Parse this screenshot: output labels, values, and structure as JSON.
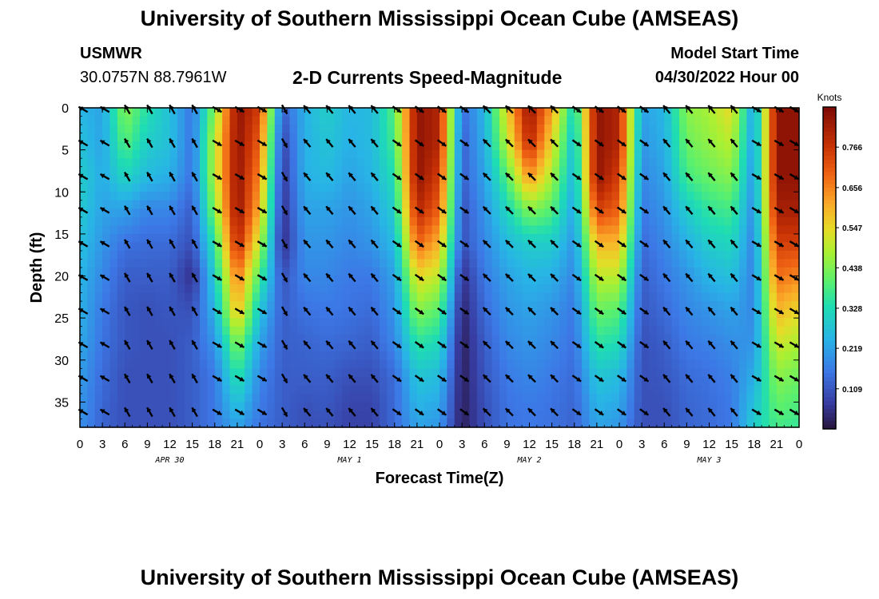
{
  "header": {
    "title": "University of Southern Mississippi Ocean Cube (AMSEAS)",
    "station": "USMWR",
    "coordinates": "30.0757N  88.7961W",
    "plot_name": "2-D Currents Speed-Magnitude",
    "start_label": "Model Start Time",
    "start_value": "04/30/2022 Hour 00"
  },
  "footer": {
    "title": "University of Southern Mississippi Ocean Cube (AMSEAS)"
  },
  "chart_data": {
    "type": "heatmap",
    "title": "2-D Currents Speed-Magnitude",
    "xlabel": "Forecast Time(Z)",
    "ylabel": "Depth (ft)",
    "x_ticks": [
      "0",
      "3",
      "6",
      "9",
      "12",
      "15",
      "18",
      "21",
      "0",
      "3",
      "6",
      "9",
      "12",
      "15",
      "18",
      "21",
      "0",
      "3",
      "6",
      "9",
      "12",
      "15",
      "18",
      "21",
      "0",
      "3",
      "6",
      "9",
      "12",
      "15",
      "18",
      "21",
      "0"
    ],
    "date_labels": [
      {
        "label": "APR 30",
        "hour": 12
      },
      {
        "label": "MAY 1",
        "hour": 36
      },
      {
        "label": "MAY 2",
        "hour": 60
      },
      {
        "label": "MAY 3",
        "hour": 84
      }
    ],
    "xlim_hours": [
      0,
      96
    ],
    "ylim_ft": [
      0,
      38
    ],
    "y_ticks": [
      0,
      5,
      10,
      15,
      20,
      25,
      30,
      35
    ],
    "colorbar": {
      "unit": "Knots",
      "ticks": [
        "0.109",
        "0.219",
        "0.328",
        "0.438",
        "0.547",
        "0.656",
        "0.766"
      ],
      "range": [
        0.0,
        0.875
      ]
    },
    "speed_grid": {
      "hours": [
        0,
        3,
        6,
        9,
        12,
        15,
        18,
        21,
        24,
        27,
        30,
        33,
        36,
        39,
        42,
        45,
        48,
        51,
        54,
        57,
        60,
        63,
        66,
        69,
        72,
        75,
        78,
        81,
        84,
        87,
        90,
        93,
        96
      ],
      "depths_ft": [
        0,
        4,
        8,
        12,
        16,
        20,
        24,
        28,
        32,
        36,
        38
      ],
      "values": [
        [
          0.25,
          0.27,
          0.3,
          0.29,
          0.27,
          0.25,
          0.24,
          0.23,
          0.21,
          0.2,
          0.19
        ],
        [
          0.22,
          0.22,
          0.23,
          0.22,
          0.2,
          0.18,
          0.16,
          0.15,
          0.14,
          0.13,
          0.13
        ],
        [
          0.45,
          0.4,
          0.32,
          0.22,
          0.15,
          0.12,
          0.11,
          0.11,
          0.1,
          0.1,
          0.1
        ],
        [
          0.34,
          0.3,
          0.26,
          0.18,
          0.14,
          0.12,
          0.1,
          0.1,
          0.1,
          0.1,
          0.1
        ],
        [
          0.27,
          0.27,
          0.24,
          0.18,
          0.14,
          0.12,
          0.11,
          0.1,
          0.1,
          0.1,
          0.1
        ],
        [
          0.15,
          0.15,
          0.15,
          0.12,
          0.1,
          0.05,
          0.1,
          0.12,
          0.12,
          0.12,
          0.12
        ],
        [
          0.45,
          0.5,
          0.5,
          0.45,
          0.36,
          0.3,
          0.25,
          0.2,
          0.16,
          0.16,
          0.16
        ],
        [
          0.85,
          0.85,
          0.85,
          0.85,
          0.8,
          0.68,
          0.6,
          0.45,
          0.35,
          0.26,
          0.22
        ],
        [
          0.75,
          0.7,
          0.65,
          0.6,
          0.5,
          0.38,
          0.28,
          0.22,
          0.18,
          0.16,
          0.15
        ],
        [
          0.12,
          0.08,
          0.06,
          0.05,
          0.04,
          0.1,
          0.12,
          0.12,
          0.12,
          0.12,
          0.12
        ],
        [
          0.24,
          0.24,
          0.24,
          0.22,
          0.2,
          0.18,
          0.15,
          0.13,
          0.12,
          0.1,
          0.1
        ],
        [
          0.3,
          0.28,
          0.26,
          0.22,
          0.2,
          0.18,
          0.16,
          0.14,
          0.12,
          0.11,
          0.1
        ],
        [
          0.25,
          0.24,
          0.22,
          0.2,
          0.18,
          0.16,
          0.15,
          0.13,
          0.1,
          0.08,
          0.08
        ],
        [
          0.26,
          0.26,
          0.25,
          0.22,
          0.2,
          0.16,
          0.14,
          0.12,
          0.1,
          0.08,
          0.08
        ],
        [
          0.4,
          0.38,
          0.34,
          0.3,
          0.26,
          0.22,
          0.2,
          0.18,
          0.14,
          0.14,
          0.14
        ],
        [
          0.85,
          0.85,
          0.85,
          0.8,
          0.7,
          0.55,
          0.45,
          0.35,
          0.28,
          0.24,
          0.22
        ],
        [
          0.8,
          0.8,
          0.75,
          0.7,
          0.6,
          0.5,
          0.4,
          0.32,
          0.26,
          0.22,
          0.2
        ],
        [
          0.14,
          0.12,
          0.12,
          0.1,
          0.1,
          0.05,
          0.03,
          0.02,
          0.02,
          0.02,
          0.02
        ],
        [
          0.25,
          0.24,
          0.22,
          0.2,
          0.18,
          0.16,
          0.14,
          0.12,
          0.11,
          0.1,
          0.1
        ],
        [
          0.55,
          0.5,
          0.4,
          0.32,
          0.26,
          0.22,
          0.2,
          0.18,
          0.16,
          0.15,
          0.15
        ],
        [
          0.85,
          0.8,
          0.65,
          0.45,
          0.3,
          0.25,
          0.22,
          0.2,
          0.18,
          0.16,
          0.16
        ],
        [
          0.62,
          0.55,
          0.48,
          0.4,
          0.3,
          0.24,
          0.2,
          0.18,
          0.16,
          0.15,
          0.15
        ],
        [
          0.3,
          0.26,
          0.24,
          0.22,
          0.2,
          0.18,
          0.16,
          0.15,
          0.14,
          0.13,
          0.13
        ],
        [
          0.85,
          0.85,
          0.85,
          0.75,
          0.6,
          0.5,
          0.42,
          0.35,
          0.28,
          0.24,
          0.22
        ],
        [
          0.8,
          0.8,
          0.75,
          0.7,
          0.6,
          0.5,
          0.4,
          0.33,
          0.26,
          0.22,
          0.2
        ],
        [
          0.22,
          0.2,
          0.18,
          0.16,
          0.14,
          0.12,
          0.11,
          0.1,
          0.1,
          0.1,
          0.1
        ],
        [
          0.25,
          0.24,
          0.22,
          0.2,
          0.18,
          0.16,
          0.14,
          0.12,
          0.11,
          0.1,
          0.1
        ],
        [
          0.45,
          0.42,
          0.38,
          0.3,
          0.24,
          0.2,
          0.18,
          0.16,
          0.14,
          0.13,
          0.13
        ],
        [
          0.48,
          0.46,
          0.42,
          0.36,
          0.3,
          0.25,
          0.2,
          0.17,
          0.15,
          0.14,
          0.14
        ],
        [
          0.55,
          0.5,
          0.45,
          0.38,
          0.32,
          0.27,
          0.22,
          0.19,
          0.17,
          0.16,
          0.16
        ],
        [
          0.2,
          0.2,
          0.19,
          0.18,
          0.17,
          0.17,
          0.18,
          0.2,
          0.24,
          0.28,
          0.3
        ],
        [
          0.85,
          0.85,
          0.85,
          0.82,
          0.75,
          0.68,
          0.6,
          0.52,
          0.45,
          0.4,
          0.38
        ],
        [
          0.85,
          0.85,
          0.85,
          0.82,
          0.75,
          0.65,
          0.55,
          0.48,
          0.42,
          0.38,
          0.36
        ]
      ]
    },
    "vectors": {
      "depths_ft": [
        0,
        4,
        8,
        12,
        16,
        20,
        24,
        28,
        32,
        36
      ],
      "direction_by_segment": [
        {
          "from_hour": 0,
          "to_hour": 4,
          "deg": 300
        },
        {
          "from_hour": 4,
          "to_hour": 16,
          "deg": 330
        },
        {
          "from_hour": 16,
          "to_hour": 26,
          "deg": 120
        },
        {
          "from_hour": 26,
          "to_hour": 29,
          "deg": 150
        },
        {
          "from_hour": 29,
          "to_hour": 41,
          "deg": 320
        },
        {
          "from_hour": 41,
          "to_hour": 52,
          "deg": 125
        },
        {
          "from_hour": 52,
          "to_hour": 64,
          "deg": 315
        },
        {
          "from_hour": 64,
          "to_hour": 76,
          "deg": 125
        },
        {
          "from_hour": 76,
          "to_hour": 89,
          "deg": 320
        },
        {
          "from_hour": 89,
          "to_hour": 96,
          "deg": 120
        }
      ],
      "hours": [
        0,
        3,
        6,
        9,
        12,
        15,
        18,
        21,
        24,
        27,
        30,
        33,
        36,
        39,
        42,
        45,
        48,
        51,
        54,
        57,
        60,
        63,
        66,
        69,
        72,
        75,
        78,
        81,
        84,
        87,
        90,
        93,
        96
      ]
    }
  }
}
